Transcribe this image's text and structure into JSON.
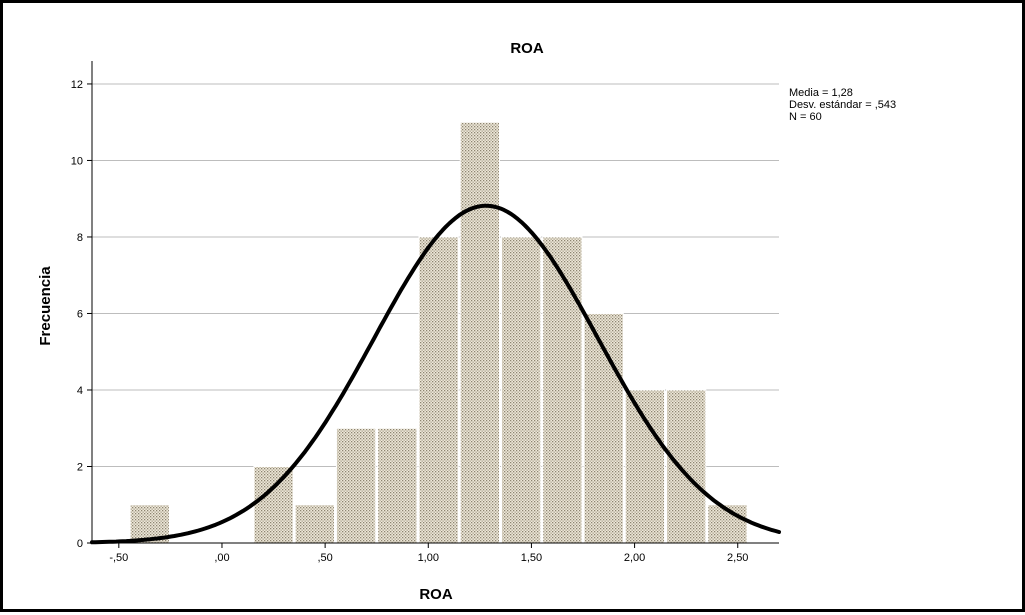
{
  "chart_data": {
    "type": "bar",
    "title": "ROA",
    "xlabel": "ROA",
    "ylabel": "Frecuencia",
    "xlim": [
      -0.63,
      2.7
    ],
    "ylim": [
      0,
      12.6
    ],
    "x_ticks": [
      -0.5,
      0.0,
      0.5,
      1.0,
      1.5,
      2.0,
      2.5
    ],
    "x_tick_labels": [
      "-,50",
      ",00",
      ",50",
      "1,00",
      "1,50",
      "2,00",
      "2,50"
    ],
    "y_ticks": [
      0,
      2,
      4,
      6,
      8,
      10,
      12
    ],
    "y_tick_labels": [
      "0",
      "2",
      "4",
      "6",
      "8",
      "10",
      "12"
    ],
    "bin_width": 0.2,
    "bin_starts": [
      -0.45,
      -0.25,
      -0.05,
      0.15,
      0.35,
      0.55,
      0.75,
      0.95,
      1.15,
      1.35,
      1.55,
      1.75,
      1.95,
      2.15,
      2.35
    ],
    "values": [
      1,
      0,
      0,
      2,
      1,
      3,
      3,
      8,
      11,
      8,
      8,
      6,
      4,
      4,
      1
    ],
    "grid": true,
    "normal_curve": {
      "mean": 1.28,
      "sd": 0.543,
      "n": 60
    },
    "stats": [
      "Media = 1,28",
      "Desv. estándar = ,543",
      "N = 60"
    ],
    "colors": {
      "bar_fill": "#e3dccb",
      "bar_stroke": "#8a8270",
      "curve": "#000000",
      "grid": "#bdbdbd"
    }
  }
}
